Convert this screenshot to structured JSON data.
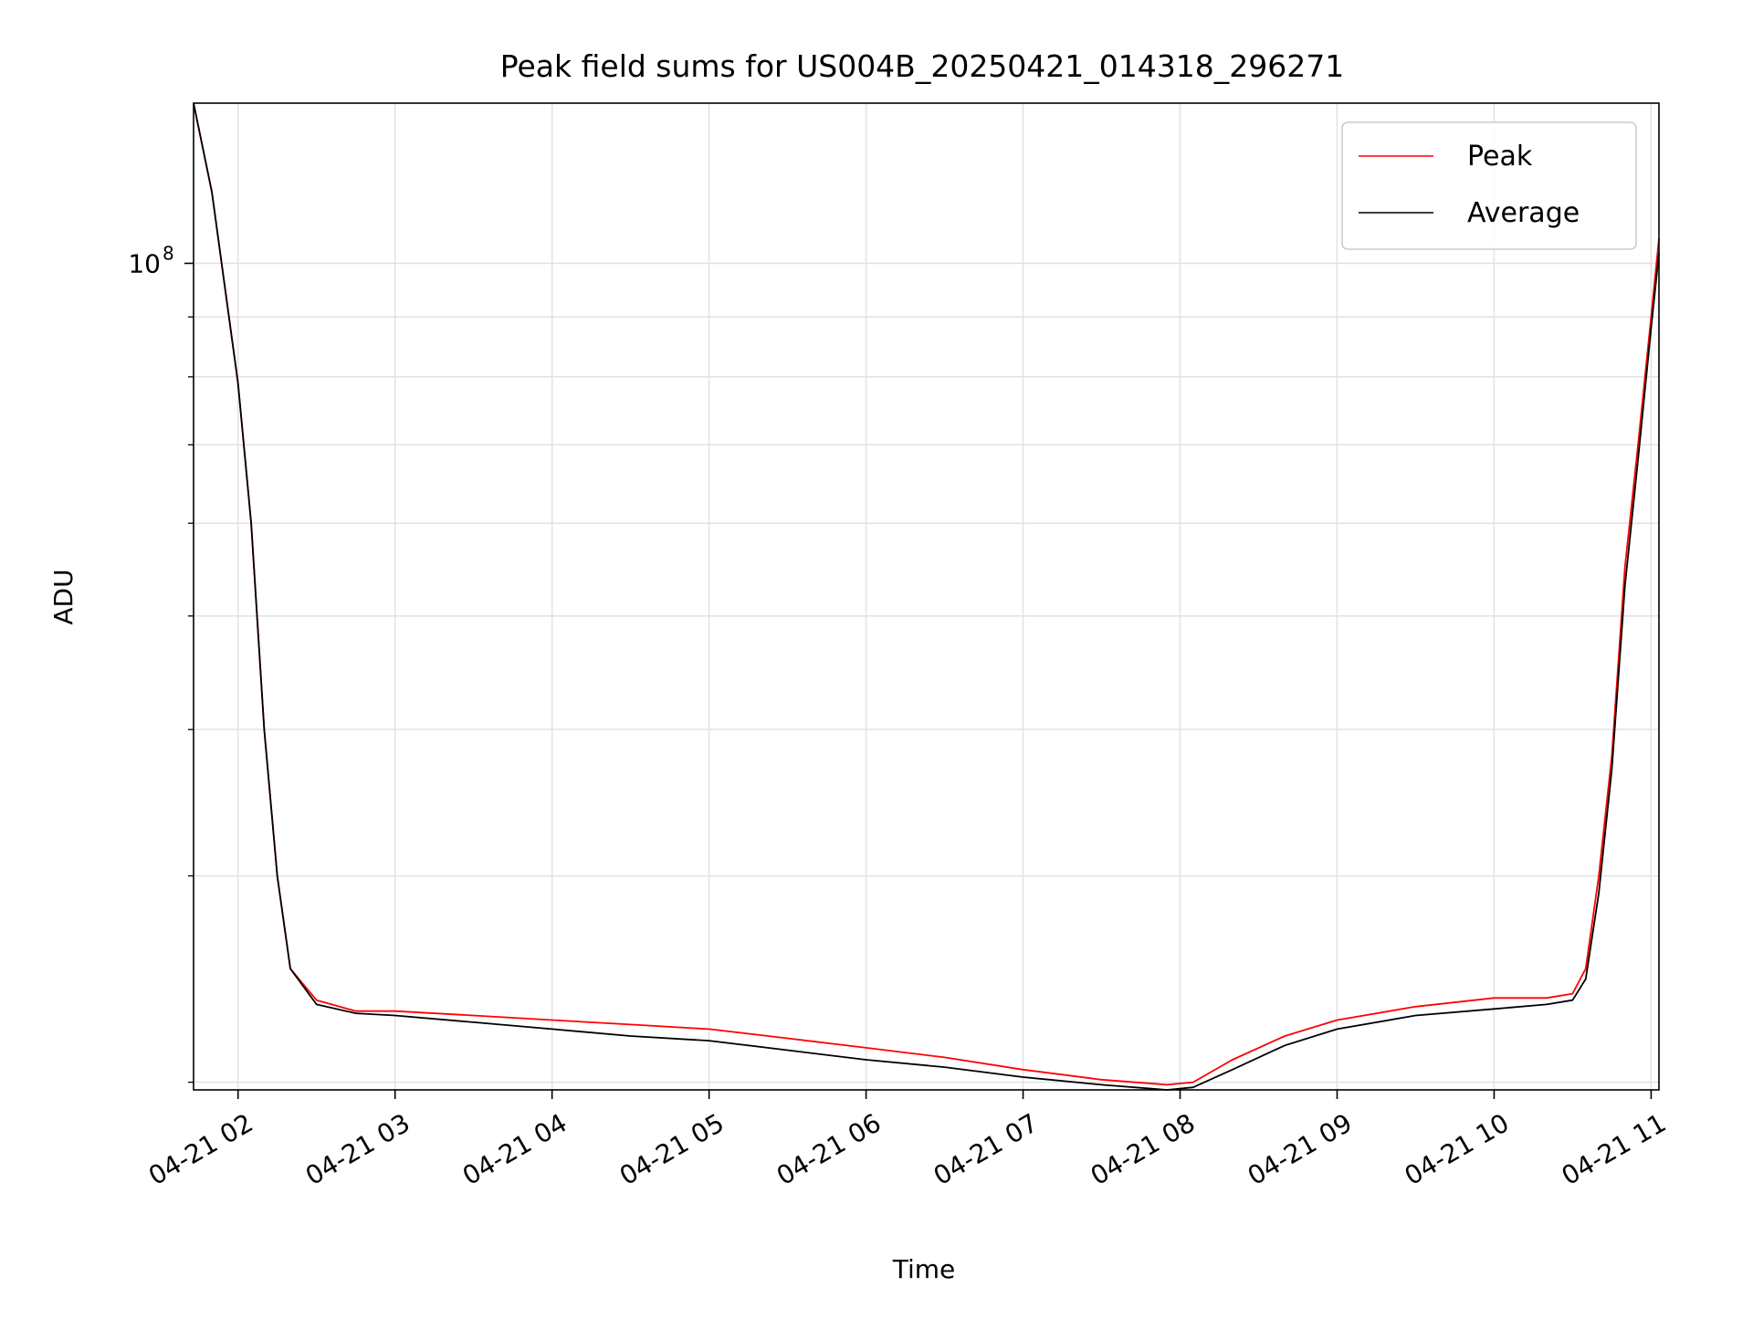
{
  "chart_data": {
    "type": "line",
    "title": "Peak field sums for US004B_20250421_014318_296271",
    "xlabel": "Time",
    "ylabel": "ADU",
    "yscale": "log",
    "grid": true,
    "legend_position": "top-right",
    "x_tick_labels": [
      "04-21 02",
      "04-21 03",
      "04-21 04",
      "04-21 05",
      "04-21 06",
      "04-21 07",
      "04-21 08",
      "04-21 09",
      "04-21 10",
      "04-21 11"
    ],
    "x_tick_times": [
      "2025-04-21 02:00",
      "2025-04-21 03:00",
      "2025-04-21 04:00",
      "2025-04-21 05:00",
      "2025-04-21 06:00",
      "2025-04-21 07:00",
      "2025-04-21 08:00",
      "2025-04-21 09:00",
      "2025-04-21 10:00",
      "2025-04-21 11:00"
    ],
    "xlim": [
      "2025-04-21 01:43",
      "2025-04-21 11:03"
    ],
    "ylim": [
      19700000,
      137000000
    ],
    "y_major_ticks": [
      {
        "value": 100000000,
        "base": "10",
        "exponent": "8"
      }
    ],
    "y_minor_ticks": [
      20000000,
      30000000,
      40000000,
      50000000,
      60000000,
      70000000,
      80000000,
      90000000
    ],
    "series": [
      {
        "name": "Peak",
        "color": "#ff0000",
        "x": [
          "2025-04-21 01:43",
          "2025-04-21 01:50",
          "2025-04-21 02:00",
          "2025-04-21 02:05",
          "2025-04-21 02:10",
          "2025-04-21 02:15",
          "2025-04-21 02:20",
          "2025-04-21 02:30",
          "2025-04-21 02:45",
          "2025-04-21 03:00",
          "2025-04-21 03:30",
          "2025-04-21 04:00",
          "2025-04-21 04:30",
          "2025-04-21 05:00",
          "2025-04-21 05:30",
          "2025-04-21 06:00",
          "2025-04-21 06:30",
          "2025-04-21 07:00",
          "2025-04-21 07:30",
          "2025-04-21 07:55",
          "2025-04-21 08:05",
          "2025-04-21 08:20",
          "2025-04-21 08:40",
          "2025-04-21 09:00",
          "2025-04-21 09:30",
          "2025-04-21 10:00",
          "2025-04-21 10:20",
          "2025-04-21 10:30",
          "2025-04-21 10:35",
          "2025-04-21 10:40",
          "2025-04-21 10:45",
          "2025-04-21 10:50",
          "2025-04-21 10:55",
          "2025-04-21 11:00",
          "2025-04-21 11:03"
        ],
        "values": [
          137000000,
          115000000,
          79000000,
          60000000,
          40000000,
          30000000,
          25000000,
          23500000,
          23000000,
          23000000,
          22800000,
          22600000,
          22400000,
          22200000,
          21800000,
          21400000,
          21000000,
          20500000,
          20100000,
          19900000,
          20000000,
          20900000,
          21900000,
          22600000,
          23200000,
          23600000,
          23600000,
          23800000,
          25000000,
          30000000,
          38000000,
          55000000,
          70000000,
          90000000,
          105000000
        ]
      },
      {
        "name": "Average",
        "color": "#000000",
        "x": [
          "2025-04-21 01:43",
          "2025-04-21 01:50",
          "2025-04-21 02:00",
          "2025-04-21 02:05",
          "2025-04-21 02:10",
          "2025-04-21 02:15",
          "2025-04-21 02:20",
          "2025-04-21 02:30",
          "2025-04-21 02:45",
          "2025-04-21 03:00",
          "2025-04-21 03:30",
          "2025-04-21 04:00",
          "2025-04-21 04:30",
          "2025-04-21 05:00",
          "2025-04-21 05:30",
          "2025-04-21 06:00",
          "2025-04-21 06:30",
          "2025-04-21 07:00",
          "2025-04-21 07:30",
          "2025-04-21 07:55",
          "2025-04-21 08:05",
          "2025-04-21 08:20",
          "2025-04-21 08:40",
          "2025-04-21 09:00",
          "2025-04-21 09:30",
          "2025-04-21 10:00",
          "2025-04-21 10:20",
          "2025-04-21 10:30",
          "2025-04-21 10:35",
          "2025-04-21 10:40",
          "2025-04-21 10:45",
          "2025-04-21 10:50",
          "2025-04-21 10:55",
          "2025-04-21 11:00",
          "2025-04-21 11:03"
        ],
        "values": [
          137000000,
          115000000,
          79000000,
          60000000,
          40000000,
          30000000,
          25000000,
          23300000,
          22900000,
          22800000,
          22500000,
          22200000,
          21900000,
          21700000,
          21300000,
          20900000,
          20600000,
          20200000,
          19900000,
          19700000,
          19800000,
          20500000,
          21500000,
          22200000,
          22800000,
          23100000,
          23300000,
          23500000,
          24500000,
          29000000,
          37000000,
          53000000,
          68000000,
          88000000,
          102000000
        ]
      }
    ]
  }
}
